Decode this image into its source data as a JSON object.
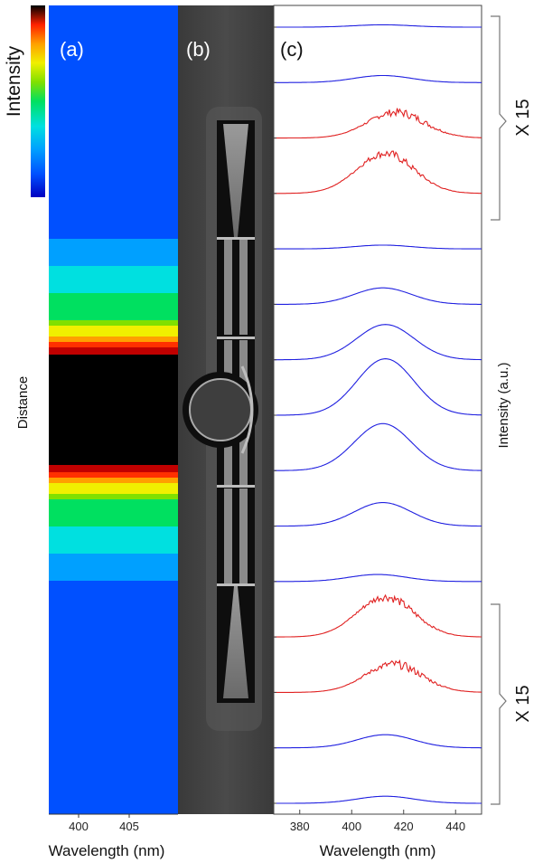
{
  "panels": {
    "a": {
      "label": "(a)",
      "colorbar_label": "Intensity",
      "ylabel": "Distance",
      "xlabel": "Wavelength (nm)",
      "xticks": [
        "400",
        "405"
      ],
      "colormap": [
        "#0000c0",
        "#0050ff",
        "#00a0ff",
        "#00e0e0",
        "#00e060",
        "#80e000",
        "#f0f000",
        "#ffa000",
        "#ff3000",
        "#c00000",
        "#000000"
      ]
    },
    "b": {
      "label": "(b)"
    },
    "c": {
      "label": "(c)",
      "xlabel": "Wavelength (nm)",
      "ylabel": "Intensity (a.u.)",
      "xticks": [
        "380",
        "400",
        "420",
        "440"
      ],
      "bracket_labels": [
        "X 15",
        "X 15"
      ]
    }
  },
  "chart_data": {
    "type": "line",
    "title": "",
    "xlabel": "Wavelength (nm)",
    "ylabel": "Intensity (a.u.)",
    "xlim": [
      370,
      450
    ],
    "x_ticks": [
      380,
      400,
      420,
      440
    ],
    "series_colors": {
      "scaled_x15": "#e02020",
      "normal": "#2020e0"
    },
    "spectra": [
      {
        "index": 1,
        "peak_nm": 412,
        "amplitude": 0.05,
        "scaled": false,
        "noisy": false
      },
      {
        "index": 2,
        "peak_nm": 412,
        "amplitude": 0.15,
        "scaled": false,
        "noisy": false
      },
      {
        "index": 3,
        "peak_nm": 417,
        "amplitude": 0.55,
        "scaled": true,
        "noisy": true
      },
      {
        "index": 4,
        "peak_nm": 413,
        "amplitude": 0.85,
        "scaled": true,
        "noisy": true
      },
      {
        "index": 5,
        "peak_nm": 412,
        "amplitude": 0.08,
        "scaled": false,
        "noisy": false
      },
      {
        "index": 6,
        "peak_nm": 412,
        "amplitude": 0.35,
        "scaled": false,
        "noisy": false
      },
      {
        "index": 7,
        "peak_nm": 413,
        "amplitude": 0.75,
        "scaled": false,
        "noisy": false
      },
      {
        "index": 8,
        "peak_nm": 413,
        "amplitude": 1.2,
        "scaled": false,
        "noisy": false
      },
      {
        "index": 9,
        "peak_nm": 412,
        "amplitude": 1.0,
        "scaled": false,
        "noisy": false
      },
      {
        "index": 10,
        "peak_nm": 412,
        "amplitude": 0.5,
        "scaled": false,
        "noisy": false
      },
      {
        "index": 11,
        "peak_nm": 410,
        "amplitude": 0.15,
        "scaled": false,
        "noisy": false
      },
      {
        "index": 12,
        "peak_nm": 413,
        "amplitude": 0.85,
        "scaled": true,
        "noisy": true
      },
      {
        "index": 13,
        "peak_nm": 416,
        "amplitude": 0.6,
        "scaled": true,
        "noisy": true
      },
      {
        "index": 14,
        "peak_nm": 413,
        "amplitude": 0.28,
        "scaled": false,
        "noisy": false
      },
      {
        "index": 15,
        "peak_nm": 413,
        "amplitude": 0.15,
        "scaled": false,
        "noisy": false
      }
    ],
    "brackets": [
      {
        "label": "X 15",
        "spectra": [
          1,
          4
        ]
      },
      {
        "label": "X 15",
        "spectra": [
          12,
          15
        ]
      }
    ]
  }
}
